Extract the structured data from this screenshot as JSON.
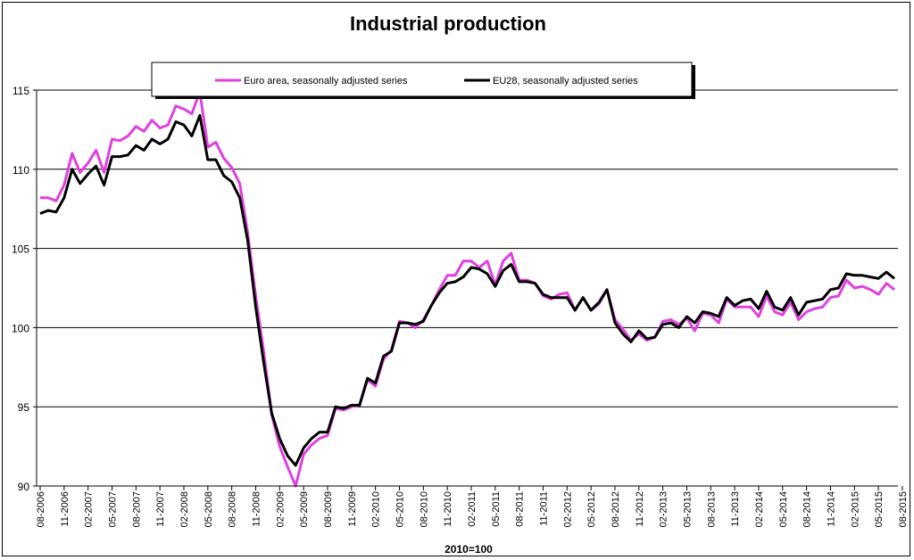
{
  "chart_data": {
    "type": "line",
    "title": "Industrial production",
    "xlabel": "2010=100",
    "ylabel": "",
    "ylim": [
      90,
      116
    ],
    "y_ticks": [
      90,
      95,
      100,
      105,
      110,
      115
    ],
    "grid": "horizontal",
    "legend_position": "top",
    "x_tick_labels": [
      "08-2006",
      "11-2006",
      "02-2007",
      "05-2007",
      "08-2007",
      "11-2007",
      "02-2008",
      "05-2008",
      "08-2008",
      "11-2008",
      "02-2009",
      "05-2009",
      "08-2009",
      "11-2009",
      "02-2010",
      "05-2010",
      "08-2010",
      "11-2010",
      "02-2011",
      "05-2011",
      "08-2011",
      "11-2011",
      "02-2012",
      "05-2012",
      "08-2012",
      "11-2012",
      "02-2013",
      "05-2013",
      "08-2013",
      "11-2013",
      "02-2014",
      "05-2014",
      "08-2014",
      "11-2014",
      "02-2015",
      "05-2015",
      "08-2015"
    ],
    "series": [
      {
        "name": "Euro area, seasonally adjusted series",
        "color": "#e040e0",
        "values": [
          108.2,
          108.2,
          108.0,
          109.0,
          111.0,
          109.8,
          110.4,
          111.2,
          109.8,
          111.9,
          111.8,
          112.1,
          112.7,
          112.4,
          113.1,
          112.6,
          112.8,
          114.0,
          113.8,
          113.5,
          114.9,
          111.4,
          111.7,
          110.7,
          110.1,
          109.1,
          106.0,
          102.0,
          98.5,
          94.5,
          92.5,
          91.2,
          90.0,
          92.0,
          92.6,
          93.0,
          93.2,
          94.9,
          94.8,
          95.0,
          95.1,
          96.7,
          96.3,
          98.0,
          98.6,
          100.4,
          100.3,
          100.0,
          100.5,
          101.4,
          102.4,
          103.3,
          103.3,
          104.2,
          104.2,
          103.8,
          104.2,
          102.7,
          104.2,
          104.7,
          103.0,
          103.0,
          102.8,
          102.0,
          101.8,
          102.1,
          102.2,
          101.1,
          101.9,
          101.1,
          101.5,
          102.4,
          100.5,
          99.9,
          99.2,
          99.6,
          99.2,
          99.4,
          100.4,
          100.5,
          100.2,
          100.6,
          99.8,
          100.9,
          100.8,
          100.3,
          101.8,
          101.3,
          101.3,
          101.3,
          100.7,
          102.0,
          101.0,
          100.8,
          101.6,
          100.5,
          101.0,
          101.2,
          101.3,
          101.9,
          102.0,
          103.0,
          102.5,
          102.6,
          102.4,
          102.1,
          102.8,
          102.4
        ]
      },
      {
        "name": "EU28, seasonally adjusted series",
        "color": "#000000",
        "values": [
          107.2,
          107.4,
          107.3,
          108.2,
          110.0,
          109.1,
          109.7,
          110.2,
          109.0,
          110.8,
          110.8,
          110.9,
          111.5,
          111.2,
          111.9,
          111.6,
          111.9,
          113.0,
          112.8,
          112.1,
          113.4,
          110.6,
          110.6,
          109.6,
          109.2,
          108.2,
          105.5,
          101.3,
          97.8,
          94.6,
          93.0,
          91.9,
          91.3,
          92.4,
          93.0,
          93.4,
          93.4,
          95.0,
          94.9,
          95.1,
          95.1,
          96.8,
          96.5,
          98.2,
          98.5,
          100.3,
          100.3,
          100.2,
          100.4,
          101.4,
          102.2,
          102.8,
          102.9,
          103.2,
          103.8,
          103.7,
          103.4,
          102.6,
          103.6,
          104.0,
          102.9,
          102.9,
          102.8,
          102.1,
          101.9,
          101.9,
          101.9,
          101.1,
          101.9,
          101.1,
          101.6,
          102.4,
          100.3,
          99.6,
          99.1,
          99.8,
          99.3,
          99.4,
          100.2,
          100.3,
          100.0,
          100.7,
          100.3,
          101.0,
          100.9,
          100.7,
          101.9,
          101.4,
          101.7,
          101.8,
          101.2,
          102.3,
          101.3,
          101.1,
          101.9,
          100.8,
          101.6,
          101.7,
          101.8,
          102.4,
          102.5,
          103.4,
          103.3,
          103.3,
          103.2,
          103.1,
          103.5,
          103.1
        ]
      }
    ]
  }
}
